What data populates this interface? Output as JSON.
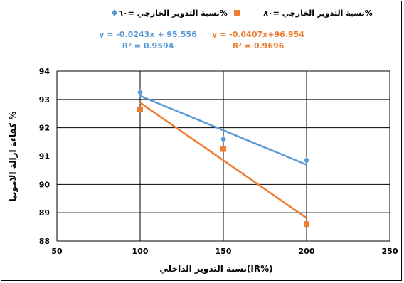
{
  "chart_data": {
    "type": "scatter",
    "xlabel": "نسبة التدوير الداخلي(IR%)",
    "ylabel": "كفاءة ازالة الامونيا %",
    "xlim": [
      50,
      250
    ],
    "ylim": [
      88,
      94
    ],
    "xticks": [
      "50",
      "100",
      "150",
      "200",
      "250"
    ],
    "yticks": [
      "88",
      "89",
      "90",
      "91",
      "92",
      "93",
      "94"
    ],
    "grid": true,
    "legend_position": "top",
    "series": [
      {
        "name": "نسبة التدوير الخارجي =٦٠%",
        "marker": "diamond",
        "color": "#5B9BD5",
        "x": [
          100,
          150,
          200
        ],
        "y": [
          93.25,
          91.6,
          90.85
        ],
        "trendline": {
          "slope": -0.0243,
          "intercept": 95.556,
          "x_range": [
            100,
            200
          ]
        },
        "equation": "y = -0.0243x + 95.556",
        "r2": "R² = 0.9594"
      },
      {
        "name": "نسبة التدوير الخارجي =٨٠%",
        "marker": "square",
        "color": "#ED7D31",
        "x": [
          100,
          150,
          200
        ],
        "y": [
          92.65,
          91.25,
          88.6
        ],
        "trendline": {
          "slope": -0.0407,
          "intercept": 96.954,
          "x_range": [
            100,
            200
          ]
        },
        "equation": "y = -0.0407x+96.954",
        "r2": "R² = 0.9696"
      }
    ]
  }
}
